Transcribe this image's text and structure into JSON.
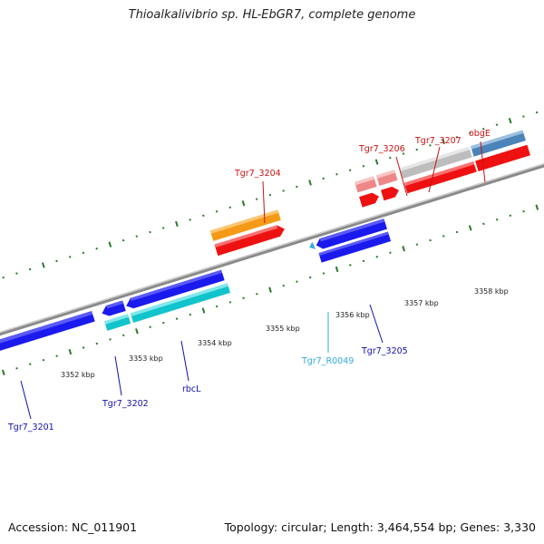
{
  "title": "Thioalkalivibrio sp. HL-EbGR7, complete genome",
  "footer": {
    "accession": "Accession: NC_011901",
    "summary": "Topology: circular; Length: 3,464,554 bp; Genes: 3,330"
  },
  "scale_labels": [
    "3352 kbp",
    "3353 kbp",
    "3354 kbp",
    "3355 kbp",
    "3356 kbp",
    "3357 kbp",
    "3358 kbp"
  ],
  "gene_labels": {
    "tgr7_3201": "Tgr7_3201",
    "tgr7_3202": "Tgr7_3202",
    "rbcl": "rbcL",
    "tgr7_3204": "Tgr7_3204",
    "tgr7_r0049": "Tgr7_R0049",
    "tgr7_3205": "Tgr7_3205",
    "tgr7_3206": "Tgr7_3206",
    "tgr7_3207": "Tgr7_3207",
    "obge": "obgE"
  },
  "colors": {
    "blue": "#1a1aee",
    "cyan": "#11c4cc",
    "orange": "#f59a16",
    "red": "#ee1111",
    "pink": "#ee8888",
    "grey": "#bdbdbd",
    "steel": "#4a84b8",
    "tick": "#2a7a2a",
    "label_blue": "#1111aa",
    "label_red": "#cc1111",
    "label_cyan": "#33aadd"
  }
}
